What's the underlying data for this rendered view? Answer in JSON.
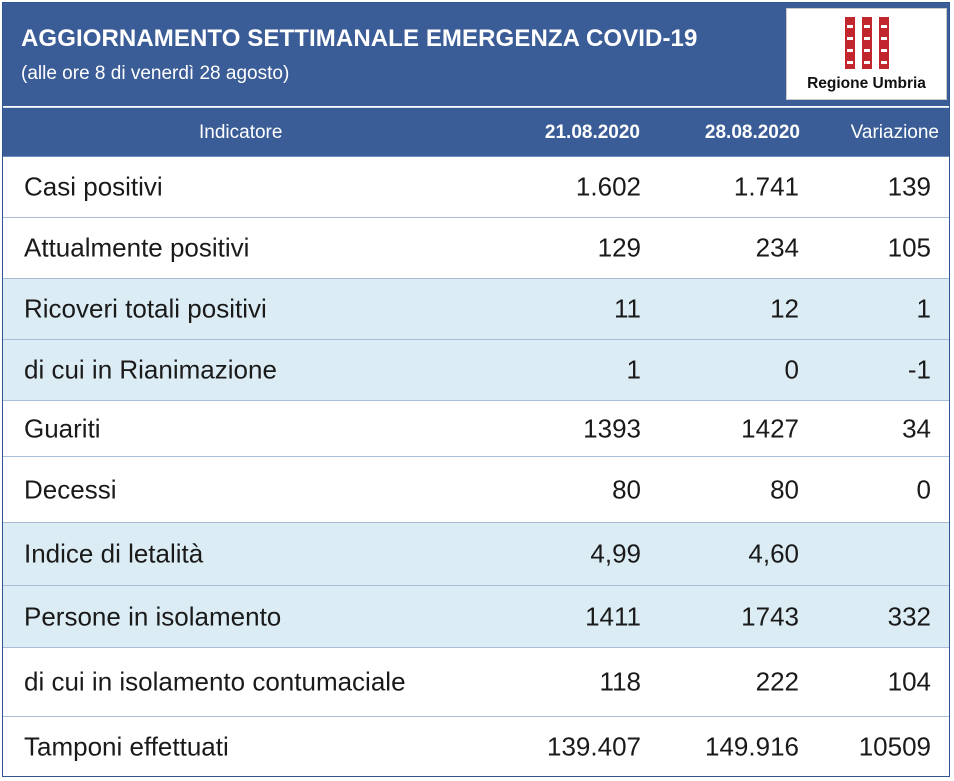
{
  "header": {
    "title": "AGGIORNAMENTO SETTIMANALE EMERGENZA COVID-19",
    "subtitle": "(alle ore 8 di venerdì 28 agosto)",
    "logo_text": "Regione Umbria",
    "logo_icon": "regione-umbria-emblem"
  },
  "table": {
    "columns": [
      "Indicatore",
      "21.08.2020",
      "28.08.2020",
      "Variazione"
    ],
    "rows": [
      {
        "label": "Casi positivi",
        "v1": "1.602",
        "v2": "1.741",
        "var": "139"
      },
      {
        "label": "Attualmente positivi",
        "v1": "129",
        "v2": "234",
        "var": "105"
      },
      {
        "label": "Ricoveri totali positivi",
        "v1": "11",
        "v2": "12",
        "var": "1"
      },
      {
        "label": "di cui in Rianimazione",
        "v1": "1",
        "v2": "0",
        "var": "-1"
      },
      {
        "label": "Guariti",
        "v1": "1393",
        "v2": "1427",
        "var": "34"
      },
      {
        "label": "Decessi",
        "v1": "80",
        "v2": "80",
        "var": "0"
      },
      {
        "label": "Indice di letalità",
        "v1": "4,99",
        "v2": "4,60",
        "var": ""
      },
      {
        "label": "Persone in isolamento",
        "v1": "1411",
        "v2": "1743",
        "var": "332"
      },
      {
        "label": "di cui in isolamento contumaciale",
        "v1": "118",
        "v2": "222",
        "var": "104"
      },
      {
        "label": "Tamponi effettuati",
        "v1": "139.407",
        "v2": "149.916",
        "var": "10509"
      }
    ]
  },
  "colors": {
    "header_blue": "#3b5d97",
    "row_highlight": "#dbecf4",
    "emblem_red": "#c1272d"
  }
}
